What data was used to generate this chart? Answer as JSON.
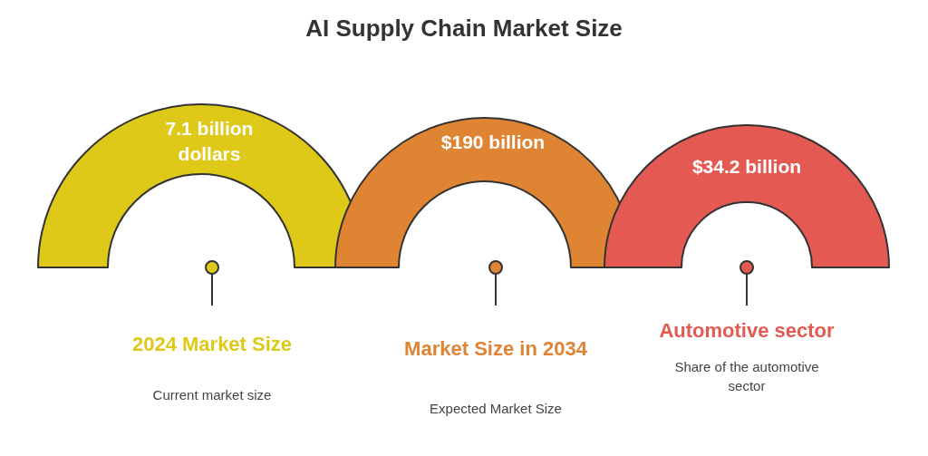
{
  "chart_data": {
    "type": "other",
    "title": "AI Supply Chain Market Size",
    "categories": [
      "2024 Market Size",
      "Market Size in 2034",
      "Automotive sector"
    ],
    "values": [
      7.1,
      190,
      34.2
    ],
    "value_labels": [
      "7.1 billion dollars",
      "$190 billion",
      "$34.2 billion"
    ],
    "colors": [
      "#dfc918",
      "#df8433",
      "#e45a52"
    ],
    "annotations": [
      "Current market size",
      "Expected Market Size",
      "Share of the automotive sector"
    ]
  }
}
